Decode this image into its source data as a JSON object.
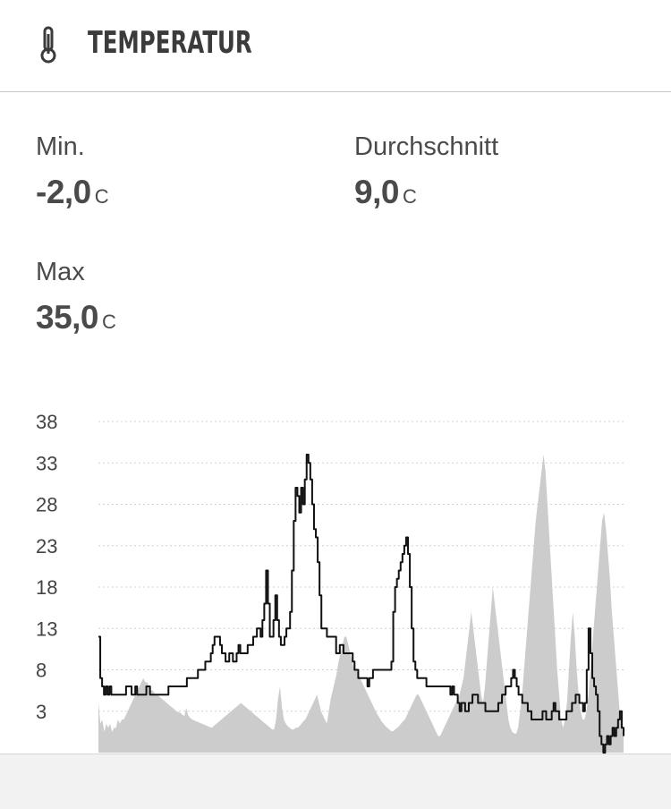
{
  "header": {
    "title": "TEMPERATUR",
    "icon": "thermometer-icon"
  },
  "stats": {
    "min": {
      "label": "Min.",
      "value": "-2,0",
      "unit": "C"
    },
    "avg": {
      "label": "Durchschnitt",
      "value": "9,0",
      "unit": "C"
    },
    "max": {
      "label": "Max",
      "value": "35,0",
      "unit": "C"
    }
  },
  "colors": {
    "line": "#111111",
    "area": "#cccccc",
    "grid": "#d0d0d0",
    "text": "#444444",
    "footer": "#f2f2f2"
  },
  "chart_data": {
    "type": "line",
    "title": "",
    "xlabel": "",
    "ylabel": "",
    "ylim": [
      -2,
      38
    ],
    "yticks": [
      38,
      33,
      28,
      23,
      18,
      13,
      8,
      3
    ],
    "grid": true,
    "series": [
      {
        "values": [
          12,
          7,
          6,
          5,
          6,
          5,
          6,
          5,
          5,
          5,
          5,
          5,
          5,
          5,
          5,
          6,
          6,
          6,
          5,
          5,
          6,
          5,
          5,
          5,
          5,
          5,
          6,
          6,
          5,
          5,
          5,
          5,
          5,
          5,
          5,
          5,
          5,
          5,
          6,
          6,
          6,
          6,
          6,
          6,
          6,
          6,
          6,
          6,
          7,
          7,
          7,
          7,
          7,
          7,
          8,
          8,
          8,
          8,
          9,
          9,
          9,
          10,
          11,
          12,
          12,
          12,
          11,
          10,
          10,
          9,
          9,
          10,
          10,
          9,
          9,
          10,
          11,
          10,
          10,
          10,
          10,
          11,
          11,
          11,
          12,
          12,
          13,
          13,
          12,
          14,
          16,
          20,
          16,
          12,
          12,
          14,
          17,
          14,
          12,
          11,
          11,
          12,
          13,
          13,
          15,
          20,
          26,
          30,
          29,
          27,
          30,
          28,
          31,
          34,
          33,
          31,
          28,
          25,
          24,
          21,
          17,
          13,
          13,
          13,
          12,
          12,
          12,
          12,
          12,
          10,
          10,
          11,
          11,
          10,
          10,
          10,
          10,
          10,
          9,
          8,
          8,
          7,
          7,
          7,
          7,
          7,
          6,
          7,
          7,
          8,
          8,
          8,
          8,
          8,
          8,
          8,
          8,
          8,
          8,
          9,
          15,
          18,
          19,
          20,
          21,
          22,
          23,
          24,
          22,
          18,
          13,
          9,
          8,
          7,
          7,
          7,
          7,
          7,
          6,
          6,
          6,
          6,
          6,
          6,
          6,
          6,
          6,
          6,
          6,
          6,
          6,
          5,
          6,
          5,
          5,
          4,
          3,
          4,
          4,
          3,
          3,
          4,
          4,
          5,
          5,
          5,
          4,
          4,
          4,
          4,
          3,
          3,
          3,
          3,
          3,
          3,
          3,
          4,
          4,
          5,
          5,
          6,
          6,
          6,
          7,
          8,
          7,
          6,
          5,
          5,
          4,
          4,
          4,
          3,
          3,
          2,
          2,
          2,
          2,
          2,
          2,
          3,
          3,
          2,
          2,
          2,
          3,
          4,
          3,
          3,
          2,
          2,
          2,
          2,
          3,
          3,
          3,
          4,
          4,
          5,
          5,
          4,
          4,
          3,
          4,
          8,
          13,
          10,
          7,
          6,
          5,
          3,
          0,
          -1,
          -2,
          -1,
          0,
          -1,
          0,
          1,
          0,
          1,
          2,
          3,
          1,
          0
        ]
      },
      {
        "values": [
          4,
          1.5,
          2,
          0.5,
          1.5,
          1,
          1.5,
          0.5,
          1,
          1,
          2,
          1.5,
          2,
          2,
          2.5,
          3,
          3.5,
          4,
          4.5,
          5,
          5.5,
          6,
          6.5,
          7,
          6.5,
          6.5,
          6,
          5.5,
          5.5,
          5,
          5,
          4.8,
          4.6,
          4.4,
          4.2,
          4,
          3.8,
          3.6,
          3.4,
          3.2,
          3,
          2.9,
          2.8,
          2.6,
          2.4,
          3.4,
          2.5,
          2.2,
          2,
          1.9,
          1.8,
          1.7,
          1.6,
          1.5,
          1.4,
          1.3,
          1.2,
          1.1,
          1,
          1.2,
          1.4,
          1.6,
          1.8,
          2,
          2.2,
          2.4,
          2.6,
          2.8,
          3,
          3.2,
          3.4,
          3.6,
          3.8,
          4,
          3.8,
          3.6,
          3.4,
          3.2,
          3,
          2.8,
          2.6,
          2.4,
          2.2,
          2,
          1.8,
          1.6,
          1.4,
          1.2,
          1,
          0.8,
          0.8,
          2,
          4.5,
          6,
          3.5,
          2,
          1.5,
          1.2,
          1,
          0.8,
          0.8,
          1,
          1,
          1.2,
          1.5,
          1.8,
          2,
          2.5,
          3,
          3.5,
          4,
          4.5,
          5,
          4,
          3,
          2.5,
          2,
          1.5,
          3,
          4.5,
          5.5,
          6.5,
          7.5,
          9,
          10,
          11,
          12,
          12,
          11,
          10,
          9,
          8,
          8,
          7.5,
          7,
          6.5,
          6,
          5.5,
          5,
          4.5,
          4,
          3.5,
          3,
          2.6,
          2.2,
          1.8,
          1.5,
          1.2,
          1,
          0.8,
          0.6,
          0.6,
          0.8,
          1,
          1.2,
          1.5,
          1.8,
          2,
          2.5,
          3,
          3.5,
          4,
          4.5,
          5,
          5,
          4.5,
          4,
          3.5,
          3,
          2.5,
          2,
          1.5,
          1,
          0.5,
          0,
          0,
          0.5,
          1,
          1.5,
          2,
          2.5,
          3,
          3.5,
          4,
          4.5,
          5,
          6,
          7,
          9,
          11,
          13,
          15,
          13,
          11,
          9,
          7,
          5,
          4,
          6,
          9,
          12,
          15,
          18,
          16,
          14,
          12,
          10,
          8,
          6,
          4,
          2,
          1,
          0.5,
          0.3,
          0.3,
          1,
          3,
          5,
          8,
          11,
          14,
          17,
          20,
          23,
          26,
          28,
          30,
          32,
          34,
          32,
          28,
          24,
          20,
          16,
          12,
          8,
          5,
          2,
          1,
          2,
          4,
          8,
          12,
          15,
          12,
          8,
          5,
          3,
          2,
          2,
          3,
          5,
          8,
          11,
          14,
          17,
          20,
          23,
          26,
          27,
          25,
          22,
          19,
          15,
          12,
          9,
          6,
          3,
          1,
          0.5
        ]
      }
    ]
  }
}
